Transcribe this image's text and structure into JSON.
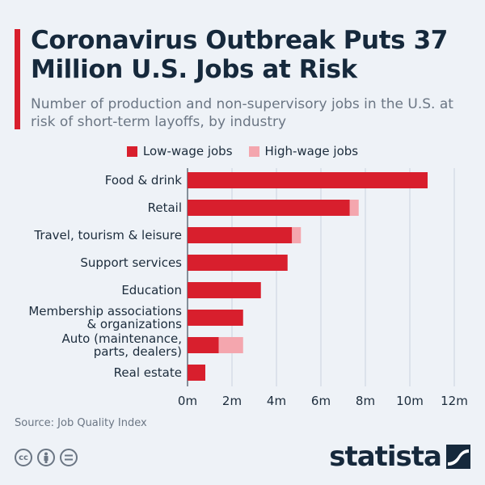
{
  "title": "Coronavirus Outbreak Puts 37 Million U.S. Jobs at Risk",
  "subtitle": "Number of production and non-supervisory jobs in the U.S. at risk of short-term layoffs, by industry",
  "legend": {
    "low": "Low-wage jobs",
    "high": "High-wage jobs"
  },
  "colors": {
    "low": "#d81f2d",
    "high": "#f4a6ae",
    "accent": "#d81f2d",
    "background": "#eef2f7",
    "grid": "#c9d3df"
  },
  "source": "Source: Job Quality Index",
  "brand": "statista",
  "license_icons": [
    "creative-commons-icon",
    "attribution-icon",
    "no-derivatives-icon"
  ],
  "chart_data": {
    "type": "bar",
    "orientation": "horizontal",
    "stacked": true,
    "categories": [
      "Food & drink",
      "Retail",
      "Travel, tourism & leisure",
      "Support services",
      "Education",
      "Membership associations & organizations",
      "Auto (maintenance, parts, dealers)",
      "Real estate"
    ],
    "category_lines": [
      [
        "Food & drink"
      ],
      [
        "Retail"
      ],
      [
        "Travel, tourism & leisure"
      ],
      [
        "Support services"
      ],
      [
        "Education"
      ],
      [
        "Membership associations",
        "& organizations"
      ],
      [
        "Auto (maintenance,",
        "parts, dealers)"
      ],
      [
        "Real estate"
      ]
    ],
    "series": [
      {
        "name": "Low-wage jobs",
        "values": [
          10.8,
          7.3,
          4.7,
          4.5,
          3.3,
          2.5,
          1.4,
          0.8
        ]
      },
      {
        "name": "High-wage jobs",
        "values": [
          0.0,
          0.4,
          0.4,
          0.0,
          0.0,
          0.0,
          1.1,
          0.0
        ]
      }
    ],
    "xlim": [
      0,
      12
    ],
    "xticks": [
      0,
      2,
      4,
      6,
      8,
      10,
      12
    ],
    "xtick_labels": [
      "0m",
      "2m",
      "4m",
      "6m",
      "8m",
      "10m",
      "12m"
    ],
    "grid": true,
    "legend_position": "top-center"
  }
}
